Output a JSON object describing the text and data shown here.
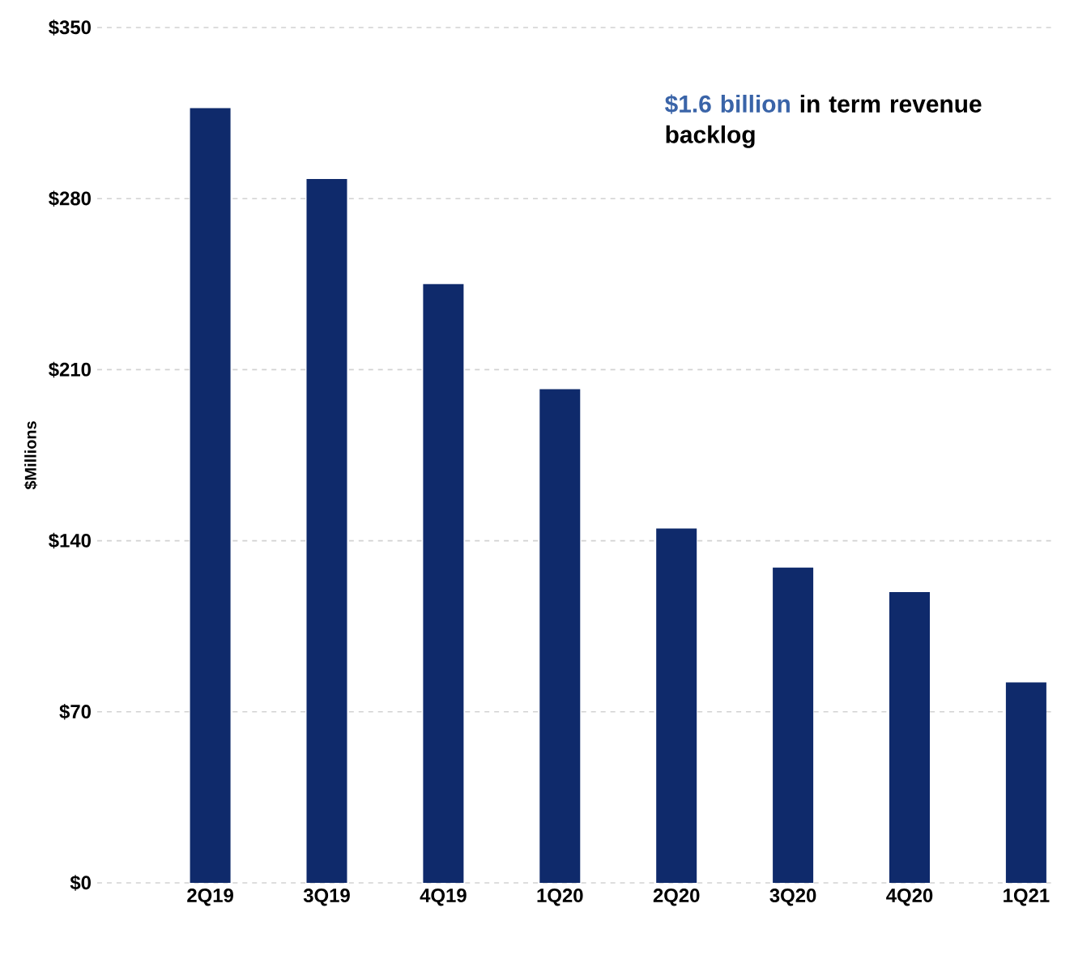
{
  "chart_data": {
    "type": "bar",
    "categories": [
      "2Q19",
      "3Q19",
      "4Q19",
      "1Q20",
      "2Q20",
      "3Q20",
      "4Q20",
      "1Q21"
    ],
    "values": [
      317,
      288,
      245,
      202,
      145,
      129,
      119,
      82
    ],
    "color": "#0f2a6b",
    "ylabel": "$Millions",
    "ylim": [
      0,
      350
    ],
    "yticks": [
      {
        "value": 0,
        "label": "$0"
      },
      {
        "value": 70,
        "label": "$70"
      },
      {
        "value": 140,
        "label": "$140"
      },
      {
        "value": 210,
        "label": "$210"
      },
      {
        "value": 280,
        "label": "$280"
      },
      {
        "value": 350,
        "label": "$350"
      }
    ],
    "grid": "y",
    "annotations": [
      "$1.6 billion",
      "in term revenue backlog"
    ]
  }
}
